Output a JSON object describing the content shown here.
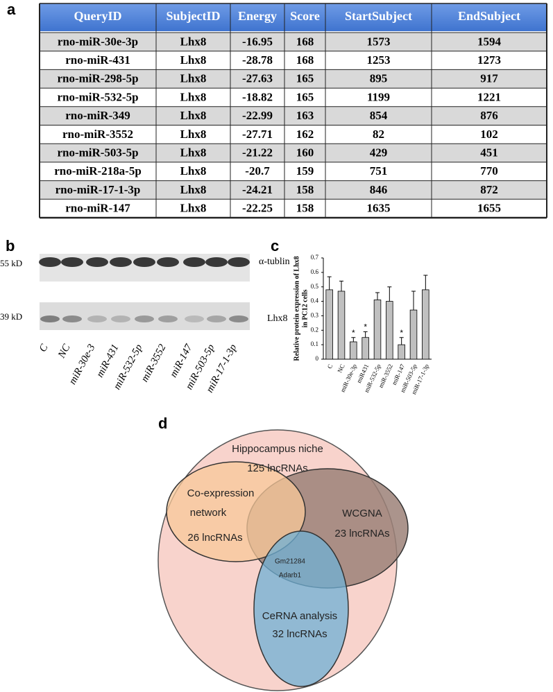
{
  "panel_labels": [
    "a",
    "b",
    "c",
    "d"
  ],
  "table": {
    "header": [
      "QueryID",
      "SubjectID",
      "Energy",
      "Score",
      "StartSubject",
      "EndSubject"
    ],
    "rows": [
      [
        "rno-miR-30e-3p",
        "Lhx8",
        "-16.95",
        "168",
        "1573",
        "1594"
      ],
      [
        "rno-miR-431",
        "Lhx8",
        "-28.78",
        "168",
        "1253",
        "1273"
      ],
      [
        "rno-miR-298-5p",
        "Lhx8",
        "-27.63",
        "165",
        "895",
        "917"
      ],
      [
        "rno-miR-532-5p",
        "Lhx8",
        "-18.82",
        "165",
        "1199",
        "1221"
      ],
      [
        "rno-miR-349",
        "Lhx8",
        "-22.99",
        "163",
        "854",
        "876"
      ],
      [
        "rno-miR-3552",
        "Lhx8",
        "-27.71",
        "162",
        "82",
        "102"
      ],
      [
        "rno-miR-503-5p",
        "Lhx8",
        "-21.22",
        "160",
        "429",
        "451"
      ],
      [
        "rno-miR-218a-5p",
        "Lhx8",
        "-20.7",
        "159",
        "751",
        "770"
      ],
      [
        "rno-miR-17-1-3p",
        "Lhx8",
        "-24.21",
        "158",
        "846",
        "872"
      ],
      [
        "rno-miR-147",
        "Lhx8",
        "-22.25",
        "158",
        "1635",
        "1655"
      ]
    ]
  },
  "blot": {
    "size_labels": [
      "55 kD",
      "39 kD"
    ],
    "band_labels": [
      "α-tublin",
      "Lhx8"
    ],
    "lanes": [
      "C",
      "NC",
      "miR-30e-3",
      "miR-431",
      "miR-532-5p",
      "miR-3552",
      "miR-147",
      "miR-503-5p",
      "miR-17-1-3p"
    ]
  },
  "chart_data": {
    "type": "bar",
    "y_label": [
      "Relative protein expression of Lhx8",
      "in PC12 cells"
    ],
    "categories": [
      "C",
      "NC",
      "miR-30e-3p",
      "miR431",
      "miR-532-5p",
      "miR-3552",
      "miR-147",
      "miR-503-5p",
      "miR-17-1-3p"
    ],
    "values": [
      0.48,
      0.47,
      0.12,
      0.15,
      0.41,
      0.4,
      0.1,
      0.34,
      0.48
    ],
    "errors": [
      0.09,
      0.07,
      0.03,
      0.04,
      0.05,
      0.1,
      0.05,
      0.13,
      0.1
    ],
    "significance": [
      null,
      null,
      "*",
      "*",
      null,
      null,
      "*",
      null,
      null
    ],
    "color": "#c0c0c0",
    "ylim": [
      0,
      0.7
    ],
    "yticks": [
      0,
      0.1,
      0.2,
      0.3,
      0.4,
      0.5,
      0.6,
      0.7
    ]
  },
  "venn": {
    "hippocampus": [
      "Hippocampus niche",
      "125 lncRNAs"
    ],
    "coexpression": [
      "Co-expression",
      "network",
      "26 lncRNAs"
    ],
    "wcgna": [
      "WCGNA",
      "23 lncRNAs"
    ],
    "center": [
      "Gm21284",
      "Adarb1"
    ],
    "cerna": [
      "CeRNA analysis",
      "32 lncRNAs"
    ]
  }
}
